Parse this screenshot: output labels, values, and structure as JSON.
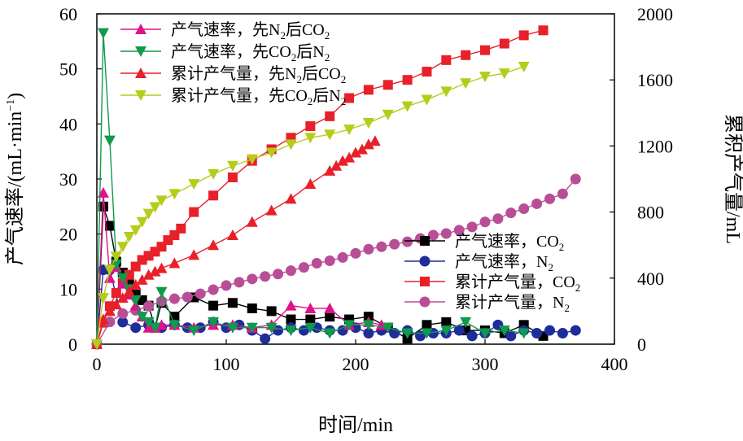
{
  "chart_data": {
    "type": "scatter",
    "xlabel": "时间/min",
    "ylabel_left": "产气速率/(mL·min",
    "ylabel_left_sup": "−1",
    "ylabel_left_close": ")",
    "ylabel_right": "累积产气量/mL",
    "xlim": [
      0,
      400
    ],
    "ylim_left": [
      0,
      60
    ],
    "ylim_right": [
      0,
      2000
    ],
    "x_ticks": [
      "0",
      "100",
      "200",
      "300",
      "400"
    ],
    "y_left_ticks": [
      "0",
      "10",
      "20",
      "30",
      "40",
      "50",
      "60"
    ],
    "y_right_ticks": [
      "0",
      "400",
      "800",
      "1200",
      "1600",
      "2000"
    ],
    "legend_top": [
      {
        "series": 4,
        "pre": "产气速率，先N",
        "sub1": "2",
        "mid": "后CO",
        "sub2": "2"
      },
      {
        "series": 5,
        "pre": "产气速率，先CO",
        "sub1": "2",
        "mid": "后N",
        "sub2": "2"
      },
      {
        "series": 6,
        "pre": "累计产气量，先N",
        "sub1": "2",
        "mid": "后CO",
        "sub2": "2"
      },
      {
        "series": 7,
        "pre": "累计产气量，先CO",
        "sub1": "2",
        "mid": "后N",
        "sub2": "2"
      }
    ],
    "legend_bottom": [
      {
        "series": 0,
        "pre": "产气速率，CO",
        "sub1": "2",
        "mid": "",
        "sub2": ""
      },
      {
        "series": 1,
        "pre": "产气速率，N",
        "sub1": "2",
        "mid": "",
        "sub2": ""
      },
      {
        "series": 2,
        "pre": "累计产气量，CO",
        "sub1": "2",
        "mid": "",
        "sub2": ""
      },
      {
        "series": 3,
        "pre": "累计产气量，N",
        "sub1": "2",
        "mid": "",
        "sub2": ""
      }
    ],
    "series": [
      {
        "name": "产气速率，CO2",
        "axis": "left",
        "marker": "square",
        "color": "#000000",
        "x": [
          0,
          5,
          10,
          15,
          20,
          25,
          30,
          35,
          40,
          45,
          50,
          60,
          75,
          90,
          105,
          120,
          135,
          150,
          165,
          180,
          195,
          210,
          225,
          240,
          255,
          270,
          285,
          300,
          315,
          330,
          345
        ],
        "y": [
          0,
          25,
          21.5,
          15,
          13,
          11,
          9,
          8,
          7,
          3,
          7.5,
          5,
          8.5,
          7,
          7.5,
          6.5,
          6,
          4.5,
          4.5,
          5,
          4.5,
          5,
          3,
          1,
          3.5,
          4,
          2.5,
          2.5,
          2,
          3.5,
          1.5
        ]
      },
      {
        "name": "产气速率，N2",
        "axis": "left",
        "marker": "circle",
        "color": "#1f2d9a",
        "x": [
          0,
          5,
          10,
          20,
          30,
          40,
          50,
          60,
          70,
          80,
          90,
          100,
          110,
          120,
          130,
          140,
          150,
          160,
          170,
          180,
          190,
          200,
          210,
          220,
          230,
          240,
          250,
          260,
          270,
          280,
          290,
          300,
          310,
          320,
          330,
          340,
          350,
          360,
          370
        ],
        "y": [
          0,
          13.5,
          13.5,
          4,
          3,
          3.5,
          3,
          3.5,
          3,
          3,
          4,
          3,
          3.5,
          2.5,
          1,
          2.5,
          3,
          2.5,
          3,
          2.5,
          2.5,
          3,
          2,
          2.5,
          2,
          2.5,
          1.5,
          2,
          2,
          2.5,
          1.5,
          2,
          3.5,
          1.5,
          2.5,
          2,
          2.5,
          2,
          2.5
        ]
      },
      {
        "name": "累计产气量，CO2",
        "axis": "right",
        "marker": "square",
        "color": "#e8202a",
        "x": [
          0,
          5,
          10,
          15,
          20,
          25,
          30,
          35,
          40,
          45,
          50,
          55,
          60,
          65,
          75,
          90,
          105,
          120,
          135,
          150,
          165,
          180,
          195,
          210,
          225,
          240,
          255,
          270,
          285,
          300,
          315,
          330,
          345
        ],
        "y": [
          0,
          130,
          230,
          310,
          370,
          420,
          470,
          510,
          535,
          560,
          590,
          630,
          660,
          700,
          800,
          900,
          1010,
          1110,
          1180,
          1250,
          1320,
          1380,
          1490,
          1540,
          1570,
          1600,
          1650,
          1720,
          1750,
          1780,
          1820,
          1870,
          1900
        ]
      },
      {
        "name": "累计产气量，N2",
        "axis": "right",
        "marker": "circle",
        "color": "#b84e96",
        "x": [
          0,
          10,
          20,
          30,
          40,
          50,
          60,
          70,
          80,
          90,
          100,
          110,
          120,
          130,
          140,
          150,
          160,
          170,
          180,
          190,
          200,
          210,
          220,
          230,
          240,
          250,
          260,
          270,
          280,
          290,
          300,
          310,
          320,
          330,
          340,
          350,
          360,
          370
        ],
        "y": [
          0,
          135,
          185,
          205,
          230,
          260,
          275,
          285,
          305,
          330,
          355,
          375,
          395,
          410,
          425,
          445,
          465,
          490,
          505,
          525,
          550,
          575,
          590,
          605,
          620,
          640,
          660,
          670,
          690,
          710,
          740,
          760,
          795,
          820,
          850,
          880,
          910,
          1000
        ]
      },
      {
        "name": "产气速率，先N2后CO2",
        "axis": "left",
        "marker": "triangle",
        "color": "#e0118a",
        "x": [
          0,
          5,
          10,
          15,
          20,
          25,
          30,
          35,
          40,
          45,
          50,
          60,
          75,
          90,
          105,
          120,
          135,
          150,
          165,
          180,
          195,
          210,
          220
        ],
        "y": [
          0,
          27.5,
          12,
          14,
          11,
          9,
          7,
          5,
          3,
          3,
          3.5,
          3.5,
          3,
          3.5,
          3.5,
          3,
          3.5,
          7,
          6.5,
          6.5,
          3.5,
          4,
          3.5
        ]
      },
      {
        "name": "产气速率，先CO2后N2",
        "axis": "left",
        "marker": "triangle-down",
        "color": "#109a4c",
        "x": [
          0,
          5,
          10,
          15,
          20,
          25,
          30,
          35,
          40,
          45,
          50,
          60,
          75,
          90,
          105,
          120,
          135,
          150,
          165,
          180,
          195,
          210,
          225,
          240,
          255,
          270,
          285,
          300,
          315,
          330
        ],
        "y": [
          0,
          56.5,
          37,
          14.5,
          12,
          10,
          8,
          5,
          4,
          3,
          9.5,
          3.5,
          2.5,
          4,
          3,
          3,
          3,
          2.5,
          3,
          2,
          3.5,
          3.5,
          3,
          2,
          2,
          2.5,
          4,
          2,
          2.5,
          2
        ]
      },
      {
        "name": "累计产气量，先N2后CO2",
        "axis": "right",
        "marker": "triangle",
        "color": "#e8202a",
        "x": [
          0,
          5,
          10,
          15,
          20,
          25,
          30,
          35,
          40,
          45,
          50,
          60,
          75,
          90,
          105,
          120,
          135,
          150,
          165,
          180,
          185,
          190,
          195,
          200,
          205,
          210,
          215
        ],
        "y": [
          0,
          150,
          200,
          240,
          280,
          320,
          360,
          390,
          420,
          440,
          460,
          490,
          540,
          600,
          660,
          740,
          810,
          880,
          970,
          1050,
          1080,
          1110,
          1130,
          1160,
          1180,
          1210,
          1230
        ]
      },
      {
        "name": "累计产气量，先CO2后N2",
        "axis": "right",
        "marker": "triangle-down",
        "color": "#b5cc1a",
        "x": [
          0,
          5,
          10,
          15,
          20,
          25,
          30,
          35,
          40,
          45,
          50,
          60,
          75,
          90,
          105,
          120,
          135,
          150,
          165,
          180,
          195,
          210,
          225,
          240,
          255,
          270,
          285,
          300,
          315,
          330
        ],
        "y": [
          0,
          280,
          450,
          530,
          590,
          650,
          690,
          740,
          790,
          830,
          870,
          910,
          970,
          1030,
          1080,
          1120,
          1160,
          1210,
          1250,
          1270,
          1300,
          1340,
          1390,
          1440,
          1480,
          1530,
          1580,
          1620,
          1640,
          1680
        ]
      }
    ]
  }
}
